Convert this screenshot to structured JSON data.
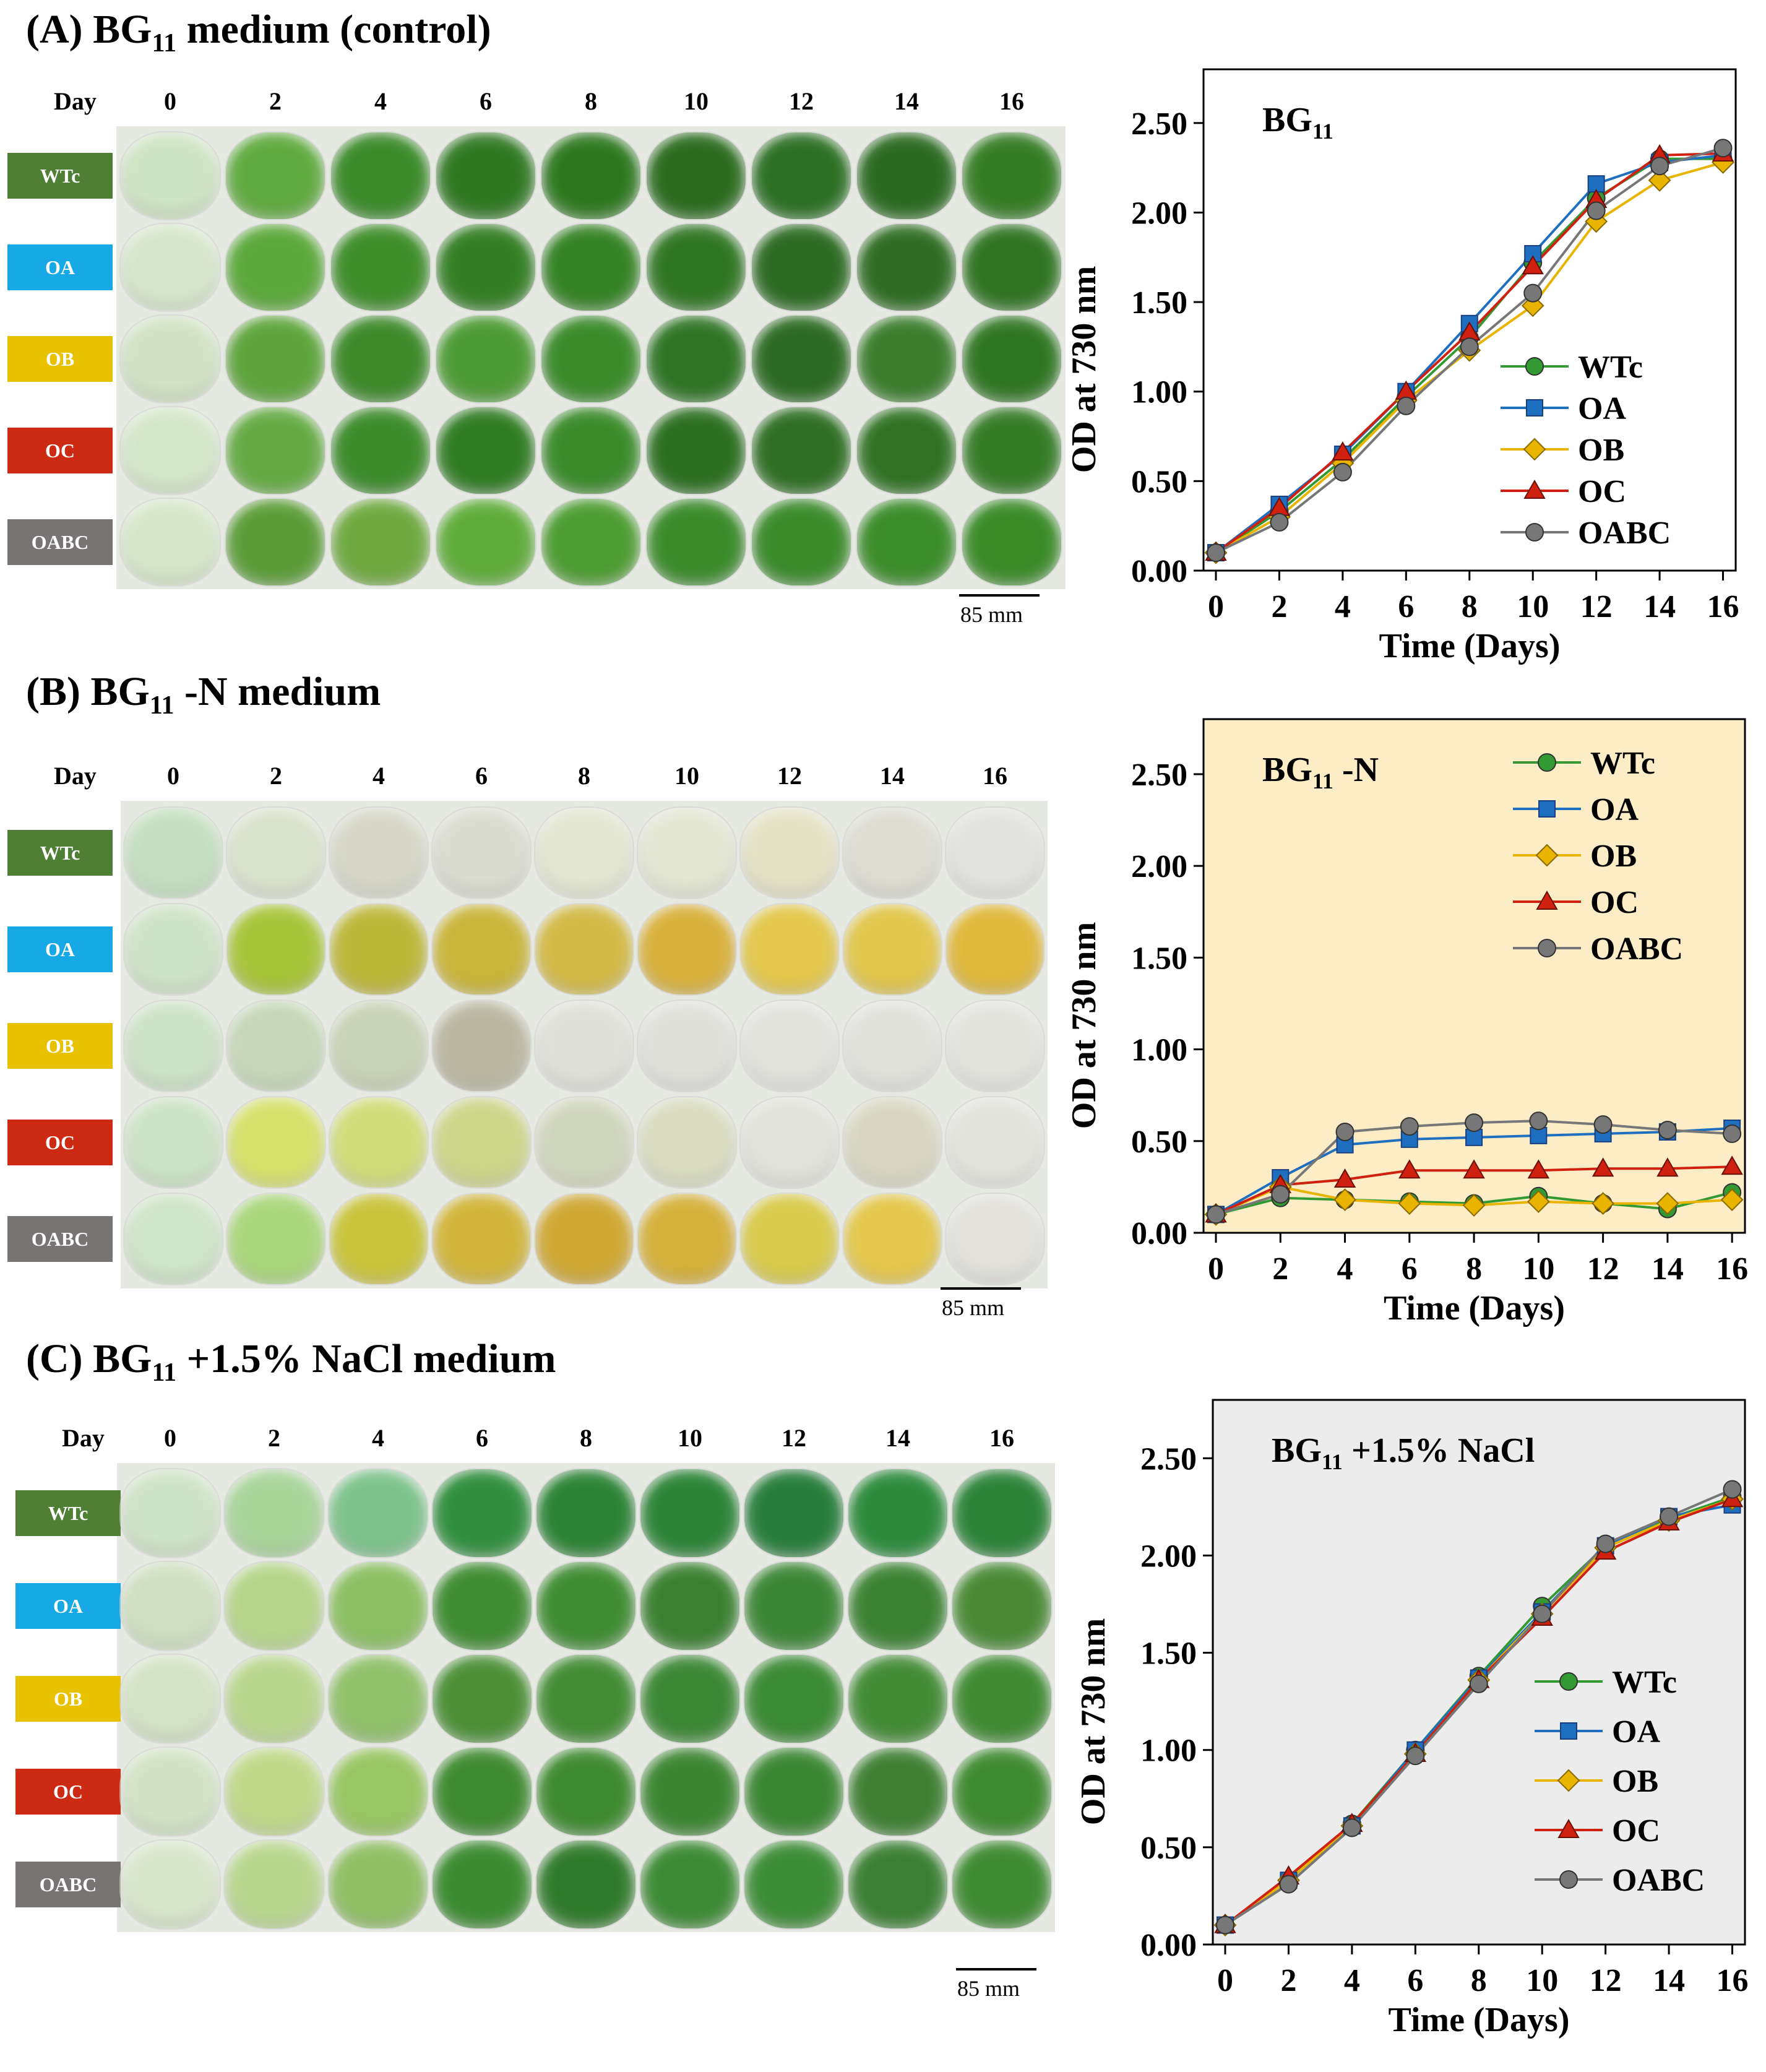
{
  "panels": [
    {
      "id": "A",
      "title_prefix": "(A) BG",
      "title_sub": "11",
      "title_suffix": " medium (control)",
      "day_word": "Day",
      "days": [
        "0",
        "2",
        "4",
        "6",
        "8",
        "10",
        "12",
        "14",
        "16"
      ],
      "strains": [
        {
          "label": "WTc",
          "color": "#4f7f35"
        },
        {
          "label": "OA",
          "color": "#17a9e6"
        },
        {
          "label": "OB",
          "color": "#e8c100"
        },
        {
          "label": "OC",
          "color": "#cc2a12"
        },
        {
          "label": "OABC",
          "color": "#787474"
        }
      ],
      "dish_colors": [
        [
          "#cfe4c2",
          "#5faa3e",
          "#3b8a2a",
          "#2f7822",
          "#2d781f",
          "#2a6b1d",
          "#2a6f22",
          "#2a6a20",
          "#347c24"
        ],
        [
          "#d6e6cb",
          "#5ba83a",
          "#3e8d2a",
          "#337e24",
          "#348224",
          "#2f7623",
          "#2b6a21",
          "#2e6c22",
          "#2f7422"
        ],
        [
          "#d1e3c3",
          "#5ca43a",
          "#3d892a",
          "#4c9a34",
          "#3a8a2a",
          "#2e7424",
          "#2b6a22",
          "#3a7d2c",
          "#2f7622"
        ],
        [
          "#d4e6c8",
          "#63aa42",
          "#3c8b2b",
          "#2f7b22",
          "#3a8a2a",
          "#2a6e1f",
          "#2d6e22",
          "#2f7223",
          "#347b26"
        ],
        [
          "#d6e7c8",
          "#5b9c36",
          "#6ea83e",
          "#5fac3a",
          "#4c9c30",
          "#3a8a2a",
          "#3a8a2a",
          "#3b8c2a",
          "#3a8a28"
        ]
      ],
      "scale_label": "85 mm"
    },
    {
      "id": "B",
      "title_prefix": "(B) BG",
      "title_sub": "11",
      "title_suffix": " -N medium",
      "day_word": "Day",
      "days": [
        "0",
        "2",
        "4",
        "6",
        "8",
        "10",
        "12",
        "14",
        "16"
      ],
      "strains": [
        {
          "label": "WTc",
          "color": "#4f7f35"
        },
        {
          "label": "OA",
          "color": "#17a9e6"
        },
        {
          "label": "OB",
          "color": "#e8c100"
        },
        {
          "label": "OC",
          "color": "#cc2a12"
        },
        {
          "label": "OABC",
          "color": "#787474"
        }
      ],
      "dish_colors": [
        [
          "#c3dfc0",
          "#d9e2cd",
          "#d6d7c8",
          "#d9dccf",
          "#e3e6d2",
          "#e4e6d4",
          "#e4e2c4",
          "#dcdcd2",
          "#e2e2de"
        ],
        [
          "#cfe3c7",
          "#a8c43a",
          "#bdb73a",
          "#c9b53a",
          "#d1b945",
          "#d8b03a",
          "#e2c74a",
          "#e0c64a",
          "#dfb739"
        ],
        [
          "#cde2c7",
          "#c5d7b6",
          "#c8d2b4",
          "#b9b6a0",
          "#dfe0d8",
          "#dfe0da",
          "#e2e2dd",
          "#e1e1dc",
          "#e3e3de"
        ],
        [
          "#cce3c5",
          "#d5e16a",
          "#d0dc78",
          "#cdd58a",
          "#d0d6bc",
          "#d9dcbf",
          "#e1e2da",
          "#d8d6c2",
          "#e3e3dd"
        ],
        [
          "#cfe4c8",
          "#a9d67a",
          "#c9c33a",
          "#d0b53a",
          "#cfa733",
          "#d5b03a",
          "#d8ca4a",
          "#e3c74a",
          "#e2e1dc"
        ]
      ],
      "scale_label": "85 mm"
    },
    {
      "id": "C",
      "title_prefix": "(C) BG",
      "title_sub": "11",
      "title_suffix": " +1.5% NaCl medium",
      "day_word": "Day",
      "days": [
        "0",
        "2",
        "4",
        "6",
        "8",
        "10",
        "12",
        "14",
        "16"
      ],
      "strains": [
        {
          "label": "WTc",
          "color": "#4f7f35"
        },
        {
          "label": "OA",
          "color": "#17a9e6"
        },
        {
          "label": "OB",
          "color": "#e8c100"
        },
        {
          "label": "OC",
          "color": "#cc2a12"
        },
        {
          "label": "OABC",
          "color": "#787474"
        }
      ],
      "dish_colors": [
        [
          "#cfe3c6",
          "#a8d49a",
          "#7cc28a",
          "#2f8e3e",
          "#2b8235",
          "#2b8337",
          "#267c3a",
          "#2b8a3c",
          "#2b8238"
        ],
        [
          "#cfe0c0",
          "#b6d58a",
          "#8bbf62",
          "#3f8c32",
          "#3f8c32",
          "#3a8030",
          "#3b8635",
          "#3b8232",
          "#4a8a36"
        ],
        [
          "#d4e3c4",
          "#bad68e",
          "#90c06a",
          "#4b8f36",
          "#428c34",
          "#3b8734",
          "#3b8a34",
          "#428b35",
          "#3f8a32"
        ],
        [
          "#d2e3c4",
          "#c0d88a",
          "#98c662",
          "#3e8a30",
          "#3e8a30",
          "#3b8531",
          "#3a8632",
          "#3e7f32",
          "#3e8a30"
        ],
        [
          "#d8e6ca",
          "#b9d68e",
          "#8fbe64",
          "#3b8a30",
          "#2f7a2a",
          "#3c8a34",
          "#3c8c36",
          "#3a7f32",
          "#3e8a32"
        ]
      ],
      "scale_label": "85 mm"
    }
  ],
  "chart_data": [
    {
      "type": "line",
      "title": "BG11",
      "title_prefix": "BG",
      "title_sub": "11",
      "title_suffix": "",
      "background": "#ffffff",
      "xlabel": "Time (Days)",
      "ylabel": "OD at 730 nm",
      "x": [
        0,
        2,
        4,
        6,
        8,
        10,
        12,
        14,
        16
      ],
      "xticks": [
        "0",
        "2",
        "4",
        "6",
        "8",
        "10",
        "12",
        "14",
        "16"
      ],
      "yticks": [
        "0.00",
        "0.50",
        "1.00",
        "1.50",
        "2.00",
        "2.50"
      ],
      "ylim": [
        0,
        2.8
      ],
      "series": [
        {
          "name": "WTc",
          "color": "#339933",
          "marker": "circle",
          "values": [
            0.1,
            0.33,
            0.62,
            0.97,
            1.3,
            1.72,
            2.08,
            2.3,
            2.3
          ]
        },
        {
          "name": "OA",
          "color": "#1f6fc0",
          "marker": "square",
          "values": [
            0.1,
            0.37,
            0.65,
            1.0,
            1.38,
            1.77,
            2.16,
            2.28,
            2.32
          ]
        },
        {
          "name": "OB",
          "color": "#e8b400",
          "marker": "diamond",
          "values": [
            0.1,
            0.3,
            0.6,
            0.95,
            1.23,
            1.48,
            1.95,
            2.18,
            2.28
          ]
        },
        {
          "name": "OC",
          "color": "#d02010",
          "marker": "triangle",
          "values": [
            0.1,
            0.35,
            0.66,
            1.0,
            1.33,
            1.7,
            2.07,
            2.32,
            2.33
          ]
        },
        {
          "name": "OABC",
          "color": "#777777",
          "marker": "circle",
          "values": [
            0.1,
            0.27,
            0.55,
            0.92,
            1.25,
            1.55,
            2.01,
            2.26,
            2.36
          ]
        }
      ]
    },
    {
      "type": "line",
      "title": "BG11 -N",
      "title_prefix": "BG",
      "title_sub": "11",
      "title_suffix": " -N",
      "background": "#fdedc6",
      "xlabel": "Time (Days)",
      "ylabel": "OD at 730 nm",
      "x": [
        0,
        2,
        4,
        6,
        8,
        10,
        12,
        14,
        16
      ],
      "xticks": [
        "0",
        "2",
        "4",
        "6",
        "8",
        "10",
        "12",
        "14",
        "16"
      ],
      "yticks": [
        "0.00",
        "0.50",
        "1.00",
        "1.50",
        "2.00",
        "2.50"
      ],
      "ylim": [
        0,
        2.8
      ],
      "series": [
        {
          "name": "WTc",
          "color": "#339933",
          "marker": "circle",
          "values": [
            0.1,
            0.19,
            0.18,
            0.17,
            0.16,
            0.2,
            0.16,
            0.13,
            0.22
          ]
        },
        {
          "name": "OA",
          "color": "#1f6fc0",
          "marker": "square",
          "values": [
            0.1,
            0.3,
            0.48,
            0.51,
            0.52,
            0.53,
            0.54,
            0.55,
            0.57
          ]
        },
        {
          "name": "OB",
          "color": "#e8b400",
          "marker": "diamond",
          "values": [
            0.1,
            0.25,
            0.18,
            0.16,
            0.15,
            0.17,
            0.16,
            0.16,
            0.18
          ]
        },
        {
          "name": "OC",
          "color": "#d02010",
          "marker": "triangle",
          "values": [
            0.1,
            0.26,
            0.29,
            0.34,
            0.34,
            0.34,
            0.35,
            0.35,
            0.36
          ]
        },
        {
          "name": "OABC",
          "color": "#777777",
          "marker": "circle",
          "values": [
            0.1,
            0.21,
            0.55,
            0.58,
            0.6,
            0.61,
            0.59,
            0.56,
            0.54
          ]
        }
      ]
    },
    {
      "type": "line",
      "title": "BG11 +1.5% NaCl",
      "title_prefix": "BG",
      "title_sub": "11",
      "title_suffix": " +1.5% NaCl",
      "background": "#ececec",
      "xlabel": "Time (Days)",
      "ylabel": "OD at 730 nm",
      "x": [
        0,
        2,
        4,
        6,
        8,
        10,
        12,
        14,
        16
      ],
      "xticks": [
        "0",
        "2",
        "4",
        "6",
        "8",
        "10",
        "12",
        "14",
        "16"
      ],
      "yticks": [
        "0.00",
        "0.50",
        "1.00",
        "1.50",
        "2.00",
        "2.50"
      ],
      "ylim": [
        0,
        2.8
      ],
      "series": [
        {
          "name": "WTc",
          "color": "#339933",
          "marker": "circle",
          "values": [
            0.1,
            0.33,
            0.62,
            1.0,
            1.38,
            1.74,
            2.05,
            2.19,
            2.3
          ]
        },
        {
          "name": "OA",
          "color": "#1f6fc0",
          "marker": "square",
          "values": [
            0.1,
            0.33,
            0.61,
            1.0,
            1.37,
            1.71,
            2.05,
            2.2,
            2.26
          ]
        },
        {
          "name": "OB",
          "color": "#e8b400",
          "marker": "diamond",
          "values": [
            0.1,
            0.33,
            0.61,
            0.98,
            1.36,
            1.7,
            2.04,
            2.18,
            2.29
          ]
        },
        {
          "name": "OC",
          "color": "#d02010",
          "marker": "triangle",
          "values": [
            0.1,
            0.35,
            0.62,
            0.98,
            1.36,
            1.68,
            2.02,
            2.17,
            2.29
          ]
        },
        {
          "name": "OABC",
          "color": "#777777",
          "marker": "circle",
          "values": [
            0.1,
            0.31,
            0.6,
            0.97,
            1.34,
            1.7,
            2.06,
            2.2,
            2.34
          ]
        }
      ]
    }
  ]
}
